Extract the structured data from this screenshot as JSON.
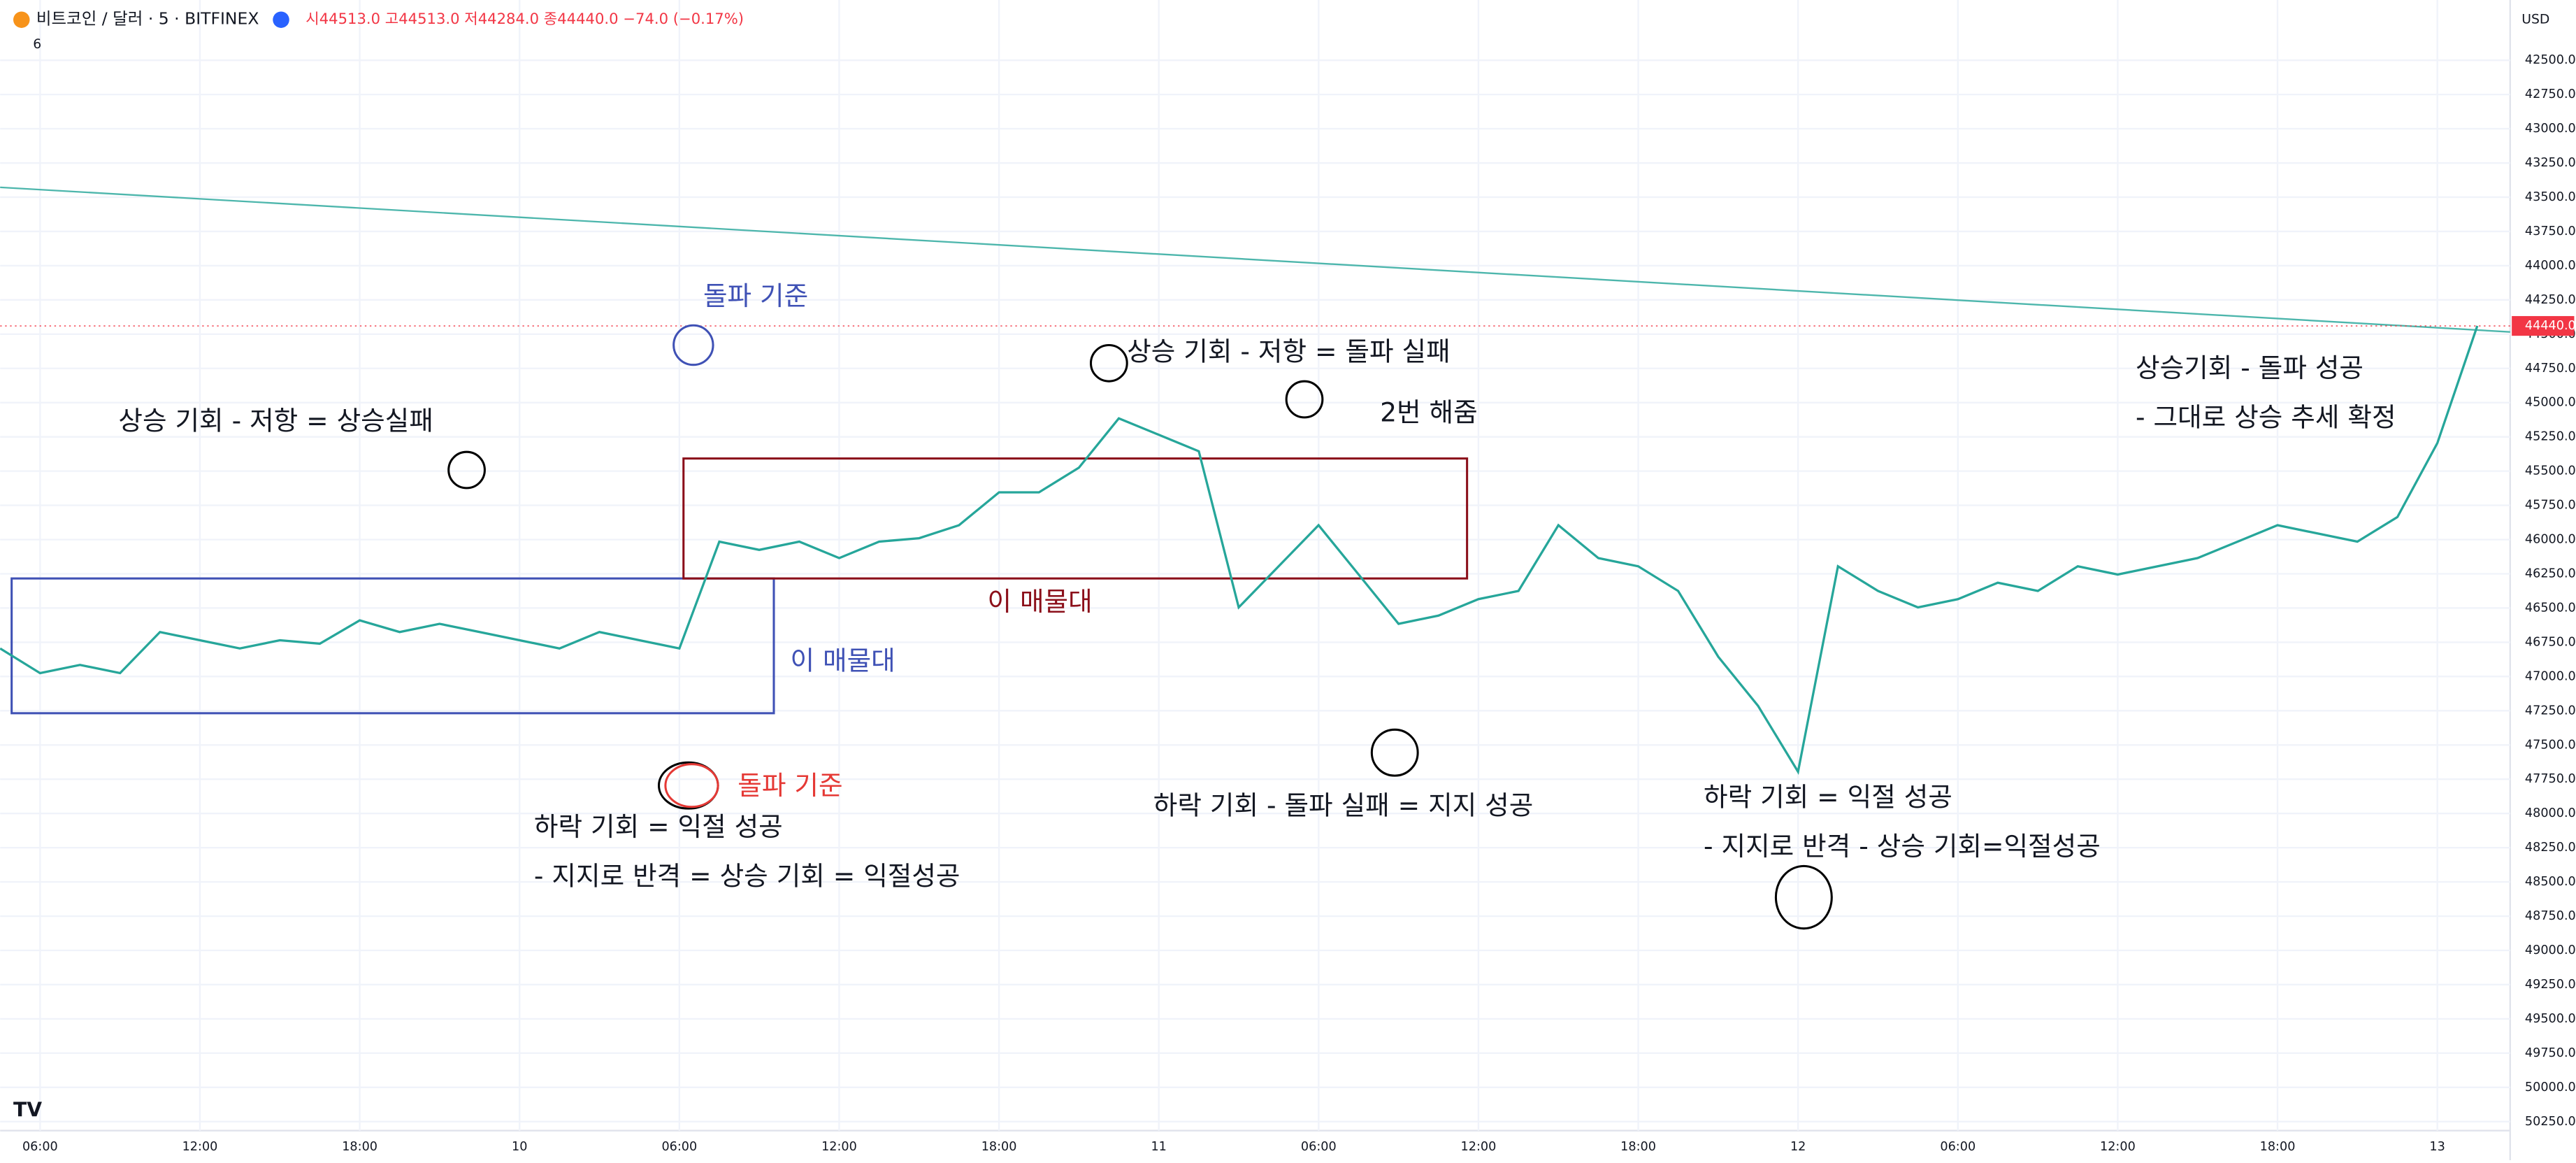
{
  "header": {
    "symbol": "비트코인 / 달러 · 5 · BITFINEX",
    "ohlc_text": "시44513.0 고44513.0 저44284.0 종44440.0 −74.0 (−0.17%)",
    "indicator_count": "6",
    "currency": "USD"
  },
  "chart_data": {
    "type": "line",
    "inverted": true,
    "color": "#26a69a",
    "categories": [
      null,
      "06:00",
      null,
      null,
      null,
      "12:00",
      null,
      null,
      null,
      "18:00",
      null,
      null,
      null,
      "10",
      null,
      null,
      null,
      "06:00",
      null,
      null,
      null,
      "12:00",
      null,
      null,
      null,
      "18:00",
      null,
      null,
      null,
      "11",
      null,
      null,
      null,
      "06:00",
      null,
      null,
      null,
      "12:00",
      null,
      null,
      null,
      "18:00",
      null,
      null,
      null,
      "12",
      null,
      null,
      null,
      "06:00",
      null,
      null,
      null,
      "12:00",
      null,
      null,
      null,
      "18:00",
      null,
      null,
      null,
      "13",
      null
    ],
    "values": [
      46795,
      46975,
      46915,
      46975,
      46675,
      46735,
      46795,
      46735,
      46760,
      46590,
      46675,
      46615,
      46675,
      46735,
      46795,
      46675,
      46735,
      46795,
      46015,
      46075,
      46015,
      46135,
      46015,
      45990,
      45895,
      45655,
      45655,
      45475,
      45115,
      45235,
      45355,
      46495,
      46195,
      45895,
      46255,
      46615,
      46555,
      46435,
      46375,
      45895,
      46135,
      46195,
      46375,
      46855,
      47215,
      47695,
      46195,
      46375,
      46495,
      46435,
      46315,
      46375,
      46195,
      46255,
      46195,
      46135,
      46015,
      45895,
      45955,
      46015,
      45835,
      45295,
      44440
    ],
    "last_price_label": "44440.0",
    "ylim": [
      42300,
      50400
    ],
    "yticks": [
      {
        "value": 42500,
        "label": "42500.0"
      },
      {
        "value": 42750,
        "label": "42750.0"
      },
      {
        "value": 43000,
        "label": "43000.0"
      },
      {
        "value": 43250,
        "label": "43250.0"
      },
      {
        "value": 43500,
        "label": "43500.0"
      },
      {
        "value": 43750,
        "label": "43750.0"
      },
      {
        "value": 44000,
        "label": "44000.0"
      },
      {
        "value": 44250,
        "label": "44250.0"
      },
      {
        "value": 44500,
        "label": "44500.0"
      },
      {
        "value": 44750,
        "label": "44750.0"
      },
      {
        "value": 45000,
        "label": "45000.0"
      },
      {
        "value": 45250,
        "label": "45250.0"
      },
      {
        "value": 45500,
        "label": "45500.0"
      },
      {
        "value": 45750,
        "label": "45750.0"
      },
      {
        "value": 46000,
        "label": "46000.0"
      },
      {
        "value": 46250,
        "label": "46250.0"
      },
      {
        "value": 46500,
        "label": "46500.0"
      },
      {
        "value": 46750,
        "label": "46750.0"
      },
      {
        "value": 47000,
        "label": "47000.0"
      },
      {
        "value": 47250,
        "label": "47250.0"
      },
      {
        "value": 47500,
        "label": "47500.0"
      },
      {
        "value": 47750,
        "label": "47750.0"
      },
      {
        "value": 48000,
        "label": "48000.0"
      },
      {
        "value": 48250,
        "label": "48250.0"
      },
      {
        "value": 48500,
        "label": "48500.0"
      },
      {
        "value": 48750,
        "label": "48750.0"
      },
      {
        "value": 49000,
        "label": "49000.0"
      },
      {
        "value": 49250,
        "label": "49250.0"
      },
      {
        "value": 49500,
        "label": "49500.0"
      },
      {
        "value": 49750,
        "label": "49750.0"
      },
      {
        "value": 50000,
        "label": "50000.0"
      },
      {
        "value": 50250,
        "label": "50250.0"
      }
    ],
    "annotations": [
      "돌파 기준",
      "상승 기회 - 저항 = 상승실패",
      "상승 기회 - 저항 = 돌파 실패",
      "2번 해줌",
      "상승기회 - 돌파 성공",
      "- 그대로 상승 추세 확정",
      "이 매물대",
      "이 매물대",
      "돌파 기준",
      "하락 기회 = 익절 성공",
      "- 지지로 반격 = 상승 기회 = 익절성공",
      "하락 기회 - 돌파 실패 = 지지 성공",
      "하락 기회 = 익절 성공",
      "- 지지로 반격 - 상승 기회=익절성공"
    ]
  }
}
